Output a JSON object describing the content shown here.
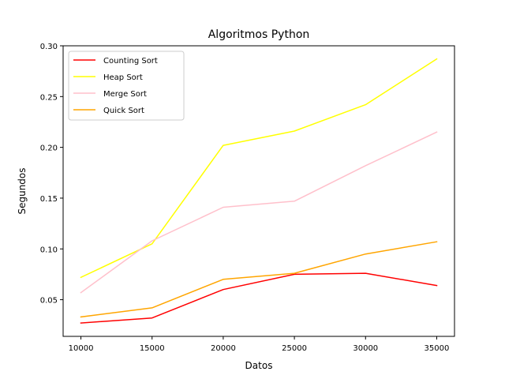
{
  "chart_data": {
    "type": "line",
    "title": "Algoritmos Python",
    "xlabel": "Datos",
    "ylabel": "Segundos",
    "x": [
      10000,
      15000,
      20000,
      25000,
      30000,
      35000
    ],
    "xticks": [
      10000,
      15000,
      20000,
      25000,
      30000,
      35000
    ],
    "xtick_labels": [
      "10000",
      "15000",
      "20000",
      "25000",
      "30000",
      "35000"
    ],
    "yticks": [
      0.05,
      0.1,
      0.15,
      0.2,
      0.25,
      0.3
    ],
    "ytick_labels": [
      "0.05",
      "0.10",
      "0.15",
      "0.20",
      "0.25",
      "0.30"
    ],
    "xlim": [
      8750,
      36250
    ],
    "ylim": [
      0.0139,
      0.3
    ],
    "grid": false,
    "legend_position": "top-left",
    "series": [
      {
        "name": "Counting Sort",
        "color": "#ff0000",
        "values": [
          0.027,
          0.032,
          0.06,
          0.075,
          0.076,
          0.064
        ]
      },
      {
        "name": "Heap Sort",
        "color": "#ffff00",
        "values": [
          0.072,
          0.105,
          0.202,
          0.216,
          0.242,
          0.287
        ]
      },
      {
        "name": "Merge Sort",
        "color": "#ffc0cb",
        "values": [
          0.057,
          0.108,
          0.141,
          0.147,
          0.182,
          0.215
        ]
      },
      {
        "name": "Quick Sort",
        "color": "#ffa500",
        "values": [
          0.033,
          0.042,
          0.07,
          0.076,
          0.095,
          0.107
        ]
      }
    ]
  }
}
